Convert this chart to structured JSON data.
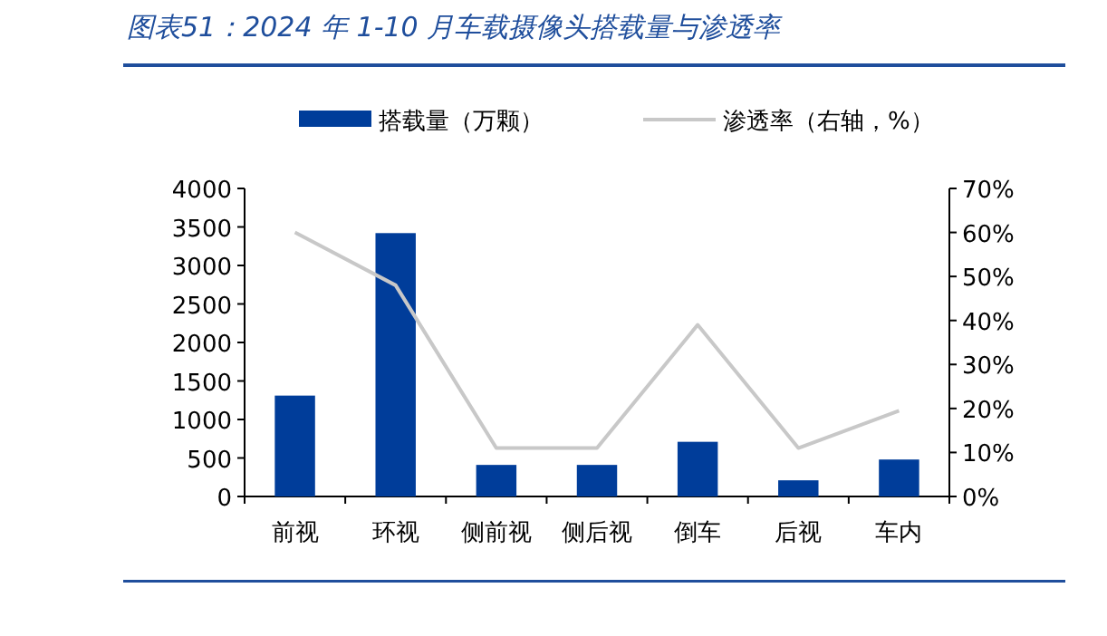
{
  "chart_data": {
    "type": "bar",
    "title": "图表51：2024 年 1-10 月车载摄像头搭载量与渗透率",
    "categories": [
      "前视",
      "环视",
      "侧前视",
      "侧后视",
      "倒车",
      "后视",
      "车内"
    ],
    "series": [
      {
        "name": "搭载量（万颗）",
        "color": "#003d9a",
        "values": [
          1310,
          3420,
          410,
          410,
          710,
          210,
          480
        ]
      },
      {
        "name": "渗透率（右轴，%）",
        "type": "line",
        "axis": "y2",
        "color": "#c8c8c8",
        "values": [
          60,
          48,
          11,
          11,
          39,
          11,
          19.5
        ]
      }
    ],
    "ylim": [
      0,
      4000
    ],
    "yticks": [
      0,
      500,
      1000,
      1500,
      2000,
      2500,
      3000,
      3500,
      4000
    ],
    "y2lim": [
      0,
      70
    ],
    "y2ticks": [
      {
        "value": 0,
        "label": "0%"
      },
      {
        "value": 10,
        "label": "10%"
      },
      {
        "value": 20,
        "label": "20%"
      },
      {
        "value": 30,
        "label": "30%"
      },
      {
        "value": 40,
        "label": "40%"
      },
      {
        "value": 50,
        "label": "50%"
      },
      {
        "value": 60,
        "label": "60%"
      },
      {
        "value": 70,
        "label": "70%"
      }
    ],
    "legend": "top",
    "grid": false,
    "marker": "none"
  }
}
